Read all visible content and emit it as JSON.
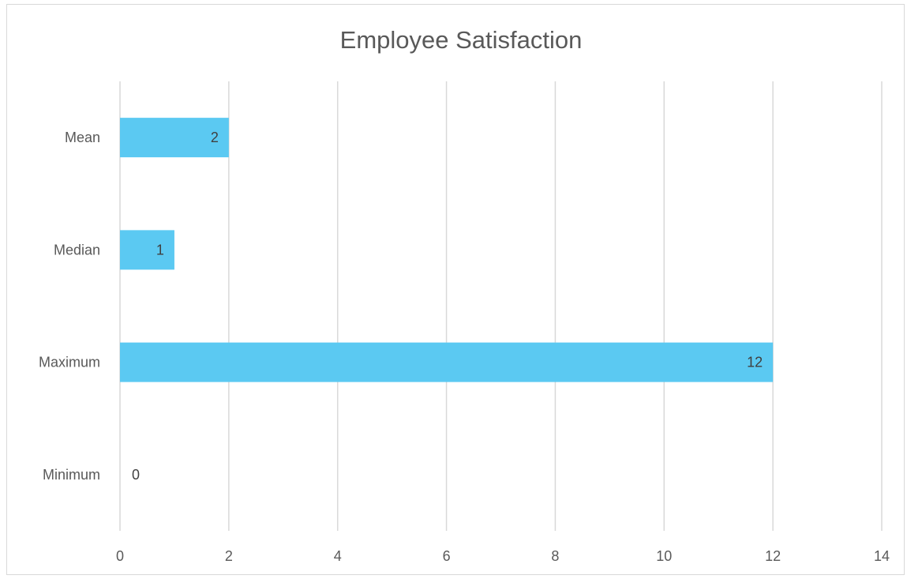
{
  "chart_data": {
    "type": "bar",
    "orientation": "horizontal",
    "title": "Employee Satisfaction",
    "xlabel": "",
    "ylabel": "",
    "categories": [
      "Mean",
      "Median",
      "Maximum",
      "Minimum"
    ],
    "values": [
      2,
      1,
      12,
      0
    ],
    "data_labels": [
      "2",
      "1",
      "12",
      "0"
    ],
    "xlim": [
      0,
      14
    ],
    "x_ticks": [
      "0",
      "2",
      "4",
      "6",
      "8",
      "10",
      "12",
      "14"
    ],
    "grid": "vertical",
    "legend": "none",
    "bar_color": "#5BC9F2",
    "grid_color": "#d9d9d9"
  }
}
